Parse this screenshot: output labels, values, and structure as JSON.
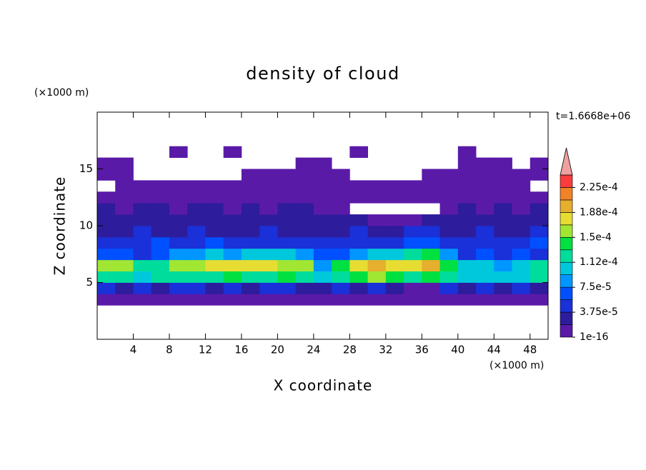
{
  "chart_data": {
    "type": "contour",
    "title": "density of cloud",
    "x_label": "X coordinate",
    "y_label": "Z coordinate",
    "x_unit": "(×1000 m)",
    "y_unit": "(×1000 m)",
    "time_label": "t=1.6668e+06",
    "xlim": [
      0,
      50
    ],
    "ylim": [
      0,
      20
    ],
    "xticks": [
      4,
      8,
      12,
      16,
      20,
      24,
      28,
      32,
      36,
      40,
      44,
      48
    ],
    "yticks": [
      5,
      10,
      15
    ],
    "x": [
      1,
      3,
      5,
      7,
      9,
      11,
      13,
      15,
      17,
      19,
      21,
      23,
      25,
      27,
      29,
      31,
      33,
      35,
      37,
      39,
      41,
      43,
      45,
      47,
      49
    ],
    "z": [
      0.5,
      1.5,
      2.5,
      3.5,
      4.5,
      5.5,
      6.5,
      7.5,
      8.5,
      9.5,
      10.5,
      11.5,
      12.5,
      13.5,
      14.5,
      15.5,
      16.5,
      17.5,
      18.5,
      19.5
    ],
    "values": [
      [
        null,
        null,
        null,
        null,
        null,
        null,
        null,
        null,
        null,
        null,
        null,
        null,
        null,
        null,
        null,
        null,
        null,
        null,
        null,
        null,
        null,
        null,
        null,
        null,
        null
      ],
      [
        null,
        null,
        null,
        null,
        null,
        null,
        null,
        null,
        null,
        null,
        null,
        null,
        null,
        null,
        null,
        null,
        null,
        null,
        null,
        null,
        null,
        null,
        null,
        null,
        null
      ],
      [
        null,
        null,
        null,
        null,
        null,
        null,
        null,
        null,
        null,
        null,
        null,
        null,
        null,
        null,
        null,
        null,
        null,
        null,
        null,
        null,
        null,
        null,
        null,
        null,
        null
      ],
      [
        1e-05,
        1e-05,
        1e-05,
        1e-05,
        1e-05,
        1e-05,
        1e-05,
        1e-05,
        1e-05,
        1e-05,
        1e-05,
        1e-05,
        1e-05,
        1e-05,
        1e-05,
        1e-05,
        1e-05,
        1e-05,
        1e-05,
        1e-05,
        1e-05,
        1e-05,
        1e-05,
        1e-05,
        1e-05
      ],
      [
        4e-05,
        3e-05,
        4e-05,
        3e-05,
        4e-05,
        4e-05,
        3e-05,
        4e-05,
        3e-05,
        4e-05,
        4e-05,
        3e-05,
        3e-05,
        4e-05,
        3e-05,
        4e-05,
        3e-05,
        1e-05,
        1e-05,
        4e-05,
        3e-05,
        4e-05,
        3e-05,
        4e-05,
        3e-05
      ],
      [
        0.00013,
        0.00012,
        0.00011,
        0.00012,
        0.00013,
        0.00012,
        0.00013,
        0.00014,
        0.00013,
        0.00012,
        0.00014,
        0.00013,
        0.0001,
        0.00012,
        0.00014,
        0.00015,
        0.00014,
        0.00012,
        0.00014,
        0.00012,
        0.00011,
        0.0001,
        0.00011,
        0.0001,
        0.00012
      ],
      [
        0.00016,
        0.00015,
        0.00012,
        0.00013,
        0.00016,
        0.00015,
        0.00017,
        0.00018,
        0.00017,
        0.00017,
        0.00016,
        0.00015,
        9e-05,
        0.00014,
        0.00018,
        0.00019,
        0.00017,
        0.00018,
        0.00019,
        0.00014,
        0.00011,
        0.0001,
        9e-05,
        0.0001,
        0.00012
      ],
      [
        7e-05,
        6e-05,
        5e-05,
        6e-05,
        8e-05,
        9e-05,
        0.0001,
        9e-05,
        0.0001,
        0.00011,
        0.0001,
        8e-05,
        6e-05,
        7e-05,
        9e-05,
        0.0001,
        0.00011,
        0.00012,
        0.00014,
        8e-05,
        5e-05,
        6e-05,
        5e-05,
        6e-05,
        5e-05
      ],
      [
        5e-05,
        4e-05,
        5e-05,
        6e-05,
        5e-05,
        5e-05,
        6e-05,
        5e-05,
        4e-05,
        5e-05,
        5e-05,
        4e-05,
        4e-05,
        5e-05,
        5e-05,
        4e-05,
        5e-05,
        6e-05,
        7e-05,
        5e-05,
        4e-05,
        5e-05,
        4e-05,
        5e-05,
        6e-05
      ],
      [
        3e-05,
        3e-05,
        4e-05,
        3e-05,
        3e-05,
        4e-05,
        3e-05,
        3e-05,
        3e-05,
        4e-05,
        3e-05,
        3e-05,
        3e-05,
        3e-05,
        4e-05,
        3e-05,
        3e-05,
        4e-05,
        4e-05,
        3e-05,
        3e-05,
        4e-05,
        3e-05,
        3e-05,
        4e-05
      ],
      [
        2e-05,
        2e-05,
        3e-05,
        2e-05,
        2e-05,
        2e-05,
        3e-05,
        2e-05,
        2e-05,
        2e-05,
        3e-05,
        2e-05,
        2e-05,
        2e-05,
        2e-05,
        1e-05,
        1e-05,
        1e-05,
        2e-05,
        2e-05,
        3e-05,
        2e-05,
        2e-05,
        2e-05,
        3e-05
      ],
      [
        2e-05,
        1e-05,
        2e-05,
        2e-05,
        1e-05,
        2e-05,
        2e-05,
        1e-05,
        2e-05,
        1e-05,
        2e-05,
        2e-05,
        1e-05,
        1e-05,
        null,
        null,
        null,
        null,
        null,
        1e-05,
        2e-05,
        1e-05,
        2e-05,
        1e-05,
        2e-05
      ],
      [
        1e-05,
        1e-05,
        1e-05,
        1e-05,
        1e-05,
        1e-05,
        1e-05,
        1e-05,
        1e-05,
        1e-05,
        1e-05,
        1e-05,
        1e-05,
        1e-05,
        1e-05,
        1e-05,
        1e-05,
        1e-05,
        1e-05,
        1e-05,
        1e-05,
        1e-05,
        1e-05,
        1e-05,
        1e-05
      ],
      [
        null,
        1e-05,
        1e-05,
        1e-05,
        1e-05,
        1e-05,
        1e-05,
        1e-05,
        1e-05,
        1e-05,
        1e-05,
        1e-05,
        1e-05,
        1e-05,
        1e-05,
        1e-05,
        1e-05,
        1e-05,
        1e-05,
        1e-05,
        1e-05,
        1e-05,
        1e-05,
        1e-05,
        null
      ],
      [
        1e-05,
        1e-05,
        null,
        null,
        null,
        null,
        null,
        null,
        1e-05,
        1e-05,
        1e-05,
        1e-05,
        1e-05,
        1e-05,
        null,
        null,
        null,
        null,
        1e-05,
        1e-05,
        1e-05,
        1e-05,
        1e-05,
        1e-05,
        1e-05
      ],
      [
        1e-05,
        1e-05,
        null,
        null,
        null,
        null,
        null,
        null,
        null,
        null,
        null,
        1e-05,
        1e-05,
        null,
        null,
        null,
        null,
        null,
        null,
        null,
        1e-05,
        1e-05,
        1e-05,
        null,
        1e-05
      ],
      [
        null,
        null,
        null,
        null,
        1e-05,
        null,
        null,
        1e-05,
        null,
        null,
        null,
        null,
        null,
        null,
        1e-05,
        null,
        null,
        null,
        null,
        null,
        1e-05,
        null,
        null,
        null,
        null
      ],
      [
        null,
        null,
        null,
        null,
        null,
        null,
        null,
        null,
        null,
        null,
        null,
        null,
        null,
        null,
        null,
        null,
        null,
        null,
        null,
        null,
        null,
        null,
        null,
        null,
        null
      ],
      [
        null,
        null,
        null,
        null,
        null,
        null,
        null,
        null,
        null,
        null,
        null,
        null,
        null,
        null,
        null,
        null,
        null,
        null,
        null,
        null,
        null,
        null,
        null,
        null,
        null
      ],
      [
        null,
        null,
        null,
        null,
        null,
        null,
        null,
        null,
        null,
        null,
        null,
        null,
        null,
        null,
        null,
        null,
        null,
        null,
        null,
        null,
        null,
        null,
        null,
        null,
        null
      ]
    ],
    "levels": [
      1e-16,
      1.875e-05,
      3.75e-05,
      5.625e-05,
      7.5e-05,
      9.375e-05,
      0.0001125,
      0.00013125,
      0.00015,
      0.00016875,
      0.0001875,
      0.00020625,
      0.000225,
      0.00024375
    ],
    "colors": [
      "#5a1aa8",
      "#2d1c9c",
      "#1a30d8",
      "#0050ff",
      "#0096ff",
      "#00c8dc",
      "#00dc9c",
      "#00e040",
      "#a0e632",
      "#e6dc32",
      "#e6af2d",
      "#f08228",
      "#fa3c3c"
    ],
    "extend_color": "#f0a0a0",
    "colorbar_ticks": [
      {
        "value": 1e-16,
        "label": "1e-16"
      },
      {
        "value": 3.75e-05,
        "label": "3.75e-5"
      },
      {
        "value": 7.5e-05,
        "label": "7.5e-5"
      },
      {
        "value": 0.0001125,
        "label": "1.12e-4"
      },
      {
        "value": 0.00015,
        "label": "1.5e-4"
      },
      {
        "value": 0.0001875,
        "label": "1.88e-4"
      },
      {
        "value": 0.000225,
        "label": "2.25e-4"
      }
    ]
  }
}
